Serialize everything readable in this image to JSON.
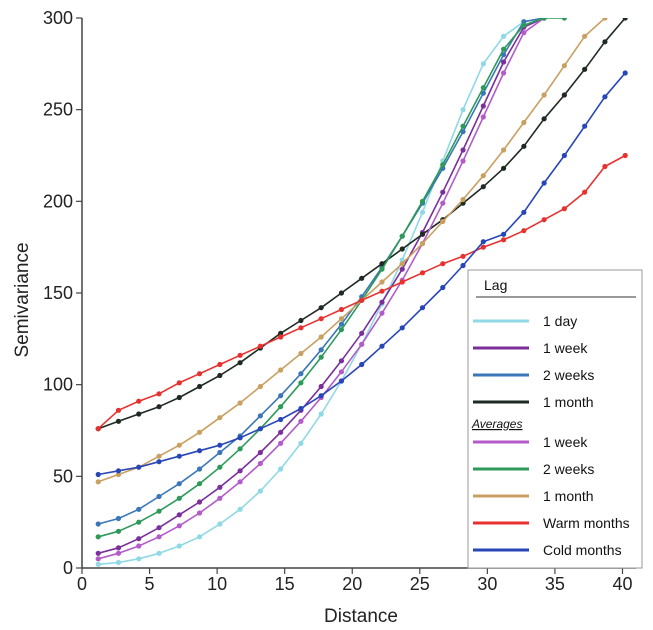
{
  "chart_data": {
    "type": "line",
    "xlabel": "Distance",
    "ylabel": "Semivariance",
    "xlim": [
      0,
      41
    ],
    "ylim": [
      0,
      300
    ],
    "xticks": [
      0,
      5,
      10,
      15,
      20,
      25,
      30,
      35,
      40
    ],
    "yticks": [
      0,
      50,
      100,
      150,
      200,
      250,
      300
    ],
    "grid": false,
    "legend": {
      "title": "Lag",
      "placement": "bottom-right",
      "subheading": "Averages"
    },
    "series": [
      {
        "name": "1 day",
        "group": "lag",
        "color": "#8fd8e6",
        "x": [
          1.2,
          2.7,
          4.2,
          5.7,
          7.2,
          8.7,
          10.2,
          11.7,
          13.2,
          14.7,
          16.2,
          17.7,
          19.2,
          20.7,
          22.2,
          23.7,
          25.2,
          26.7,
          28.2,
          29.7,
          31.2,
          32.7,
          34.2
        ],
        "y": [
          2,
          3,
          5,
          8,
          12,
          17,
          24,
          32,
          42,
          54,
          68,
          84,
          102,
          122,
          144,
          168,
          194,
          222,
          250,
          275,
          290,
          298,
          300
        ]
      },
      {
        "name": "1 week",
        "group": "lag",
        "color": "#7a2f9b",
        "x": [
          1.2,
          2.7,
          4.2,
          5.7,
          7.2,
          8.7,
          10.2,
          11.7,
          13.2,
          14.7,
          16.2,
          17.7,
          19.2,
          20.7,
          22.2,
          23.7,
          25.2,
          26.7,
          28.2,
          29.7,
          31.2,
          32.7,
          34.2
        ],
        "y": [
          8,
          11,
          16,
          22,
          29,
          36,
          44,
          53,
          63,
          74,
          86,
          99,
          113,
          128,
          145,
          163,
          183,
          205,
          228,
          252,
          276,
          295,
          300
        ]
      },
      {
        "name": "2 weeks",
        "group": "lag",
        "color": "#3a76b8",
        "x": [
          1.2,
          2.7,
          4.2,
          5.7,
          7.2,
          8.7,
          10.2,
          11.7,
          13.2,
          14.7,
          16.2,
          17.7,
          19.2,
          20.7,
          22.2,
          23.7,
          25.2,
          26.7,
          28.2,
          29.7,
          31.2,
          32.7,
          34.2
        ],
        "y": [
          24,
          27,
          32,
          39,
          46,
          54,
          63,
          72,
          83,
          94,
          106,
          119,
          133,
          148,
          164,
          181,
          199,
          218,
          238,
          259,
          280,
          298,
          300
        ]
      },
      {
        "name": "1 month",
        "group": "lag",
        "color": "#1e2a22",
        "x": [
          1.2,
          2.7,
          4.2,
          5.7,
          7.2,
          8.7,
          10.2,
          11.7,
          13.2,
          14.7,
          16.2,
          17.7,
          19.2,
          20.7,
          22.2,
          23.7,
          25.2,
          26.7,
          28.2,
          29.7,
          31.2,
          32.7,
          34.2,
          35.7,
          37.2,
          38.7,
          40.2
        ],
        "y": [
          76,
          80,
          84,
          88,
          93,
          99,
          105,
          112,
          120,
          128,
          135,
          142,
          150,
          158,
          166,
          174,
          182,
          190,
          199,
          208,
          218,
          230,
          245,
          258,
          272,
          287,
          300
        ]
      },
      {
        "name": "1 week",
        "group": "averages",
        "color": "#b35bc9",
        "x": [
          1.2,
          2.7,
          4.2,
          5.7,
          7.2,
          8.7,
          10.2,
          11.7,
          13.2,
          14.7,
          16.2,
          17.7,
          19.2,
          20.7,
          22.2,
          23.7,
          25.2,
          26.7,
          28.2,
          29.7,
          31.2,
          32.7,
          34.2
        ],
        "y": [
          5,
          8,
          12,
          17,
          23,
          30,
          38,
          47,
          57,
          68,
          80,
          93,
          107,
          122,
          139,
          157,
          177,
          199,
          222,
          246,
          270,
          292,
          300
        ]
      },
      {
        "name": "2 weeks",
        "group": "averages",
        "color": "#2e9a5a",
        "x": [
          1.2,
          2.7,
          4.2,
          5.7,
          7.2,
          8.7,
          10.2,
          11.7,
          13.2,
          14.7,
          16.2,
          17.7,
          19.2,
          20.7,
          22.2,
          23.7,
          25.2,
          26.7,
          28.2,
          29.7,
          31.2,
          32.7,
          34.2,
          35.7
        ],
        "y": [
          17,
          20,
          25,
          31,
          38,
          46,
          55,
          65,
          76,
          88,
          101,
          115,
          130,
          146,
          163,
          181,
          200,
          220,
          241,
          262,
          283,
          296,
          300,
          300
        ]
      },
      {
        "name": "1 month",
        "group": "averages",
        "color": "#c8a060",
        "x": [
          1.2,
          2.7,
          4.2,
          5.7,
          7.2,
          8.7,
          10.2,
          11.7,
          13.2,
          14.7,
          16.2,
          17.7,
          19.2,
          20.7,
          22.2,
          23.7,
          25.2,
          26.7,
          28.2,
          29.7,
          31.2,
          32.7,
          34.2,
          35.7,
          37.2,
          38.7
        ],
        "y": [
          47,
          51,
          55,
          61,
          67,
          74,
          82,
          90,
          99,
          108,
          117,
          126,
          136,
          146,
          156,
          166,
          177,
          189,
          201,
          214,
          228,
          243,
          258,
          274,
          290,
          300
        ]
      },
      {
        "name": "Warm months",
        "group": "averages",
        "color": "#e8312f",
        "x": [
          1.2,
          2.7,
          4.2,
          5.7,
          7.2,
          8.7,
          10.2,
          11.7,
          13.2,
          14.7,
          16.2,
          17.7,
          19.2,
          20.7,
          22.2,
          23.7,
          25.2,
          26.7,
          28.2,
          29.7,
          31.2,
          32.7,
          34.2,
          35.7,
          37.2,
          38.7,
          40.2
        ],
        "y": [
          76,
          86,
          91,
          95,
          101,
          106,
          111,
          116,
          121,
          126,
          131,
          136,
          141,
          146,
          151,
          156,
          161,
          166,
          170,
          175,
          179,
          184,
          190,
          196,
          205,
          219,
          225
        ]
      },
      {
        "name": "Cold months",
        "group": "averages",
        "color": "#2846b8",
        "x": [
          1.2,
          2.7,
          4.2,
          5.7,
          7.2,
          8.7,
          10.2,
          11.7,
          13.2,
          14.7,
          16.2,
          17.7,
          19.2,
          20.7,
          22.2,
          23.7,
          25.2,
          26.7,
          28.2,
          29.7,
          31.2,
          32.7,
          34.2,
          35.7,
          37.2,
          38.7,
          40.2
        ],
        "y": [
          51,
          53,
          55,
          58,
          61,
          64,
          67,
          71,
          76,
          81,
          87,
          94,
          102,
          111,
          121,
          131,
          142,
          153,
          165,
          178,
          182,
          194,
          210,
          225,
          241,
          257,
          270
        ]
      }
    ]
  }
}
